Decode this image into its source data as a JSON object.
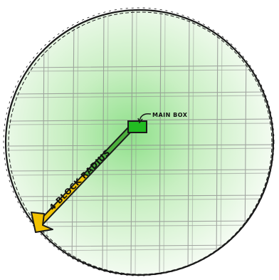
{
  "diagram": {
    "center_label": "MAIN BOX",
    "radius_label": "4 BLOCK RADIUS",
    "colors": {
      "fill_center": "#8fe08a",
      "fill_edge": "#f6fcf4",
      "box": "#22bb22",
      "arrow": "#f2c200",
      "radius_line": "#4caf3c",
      "outline": "#1a1a1a",
      "grid": "#8a8a8a"
    }
  }
}
